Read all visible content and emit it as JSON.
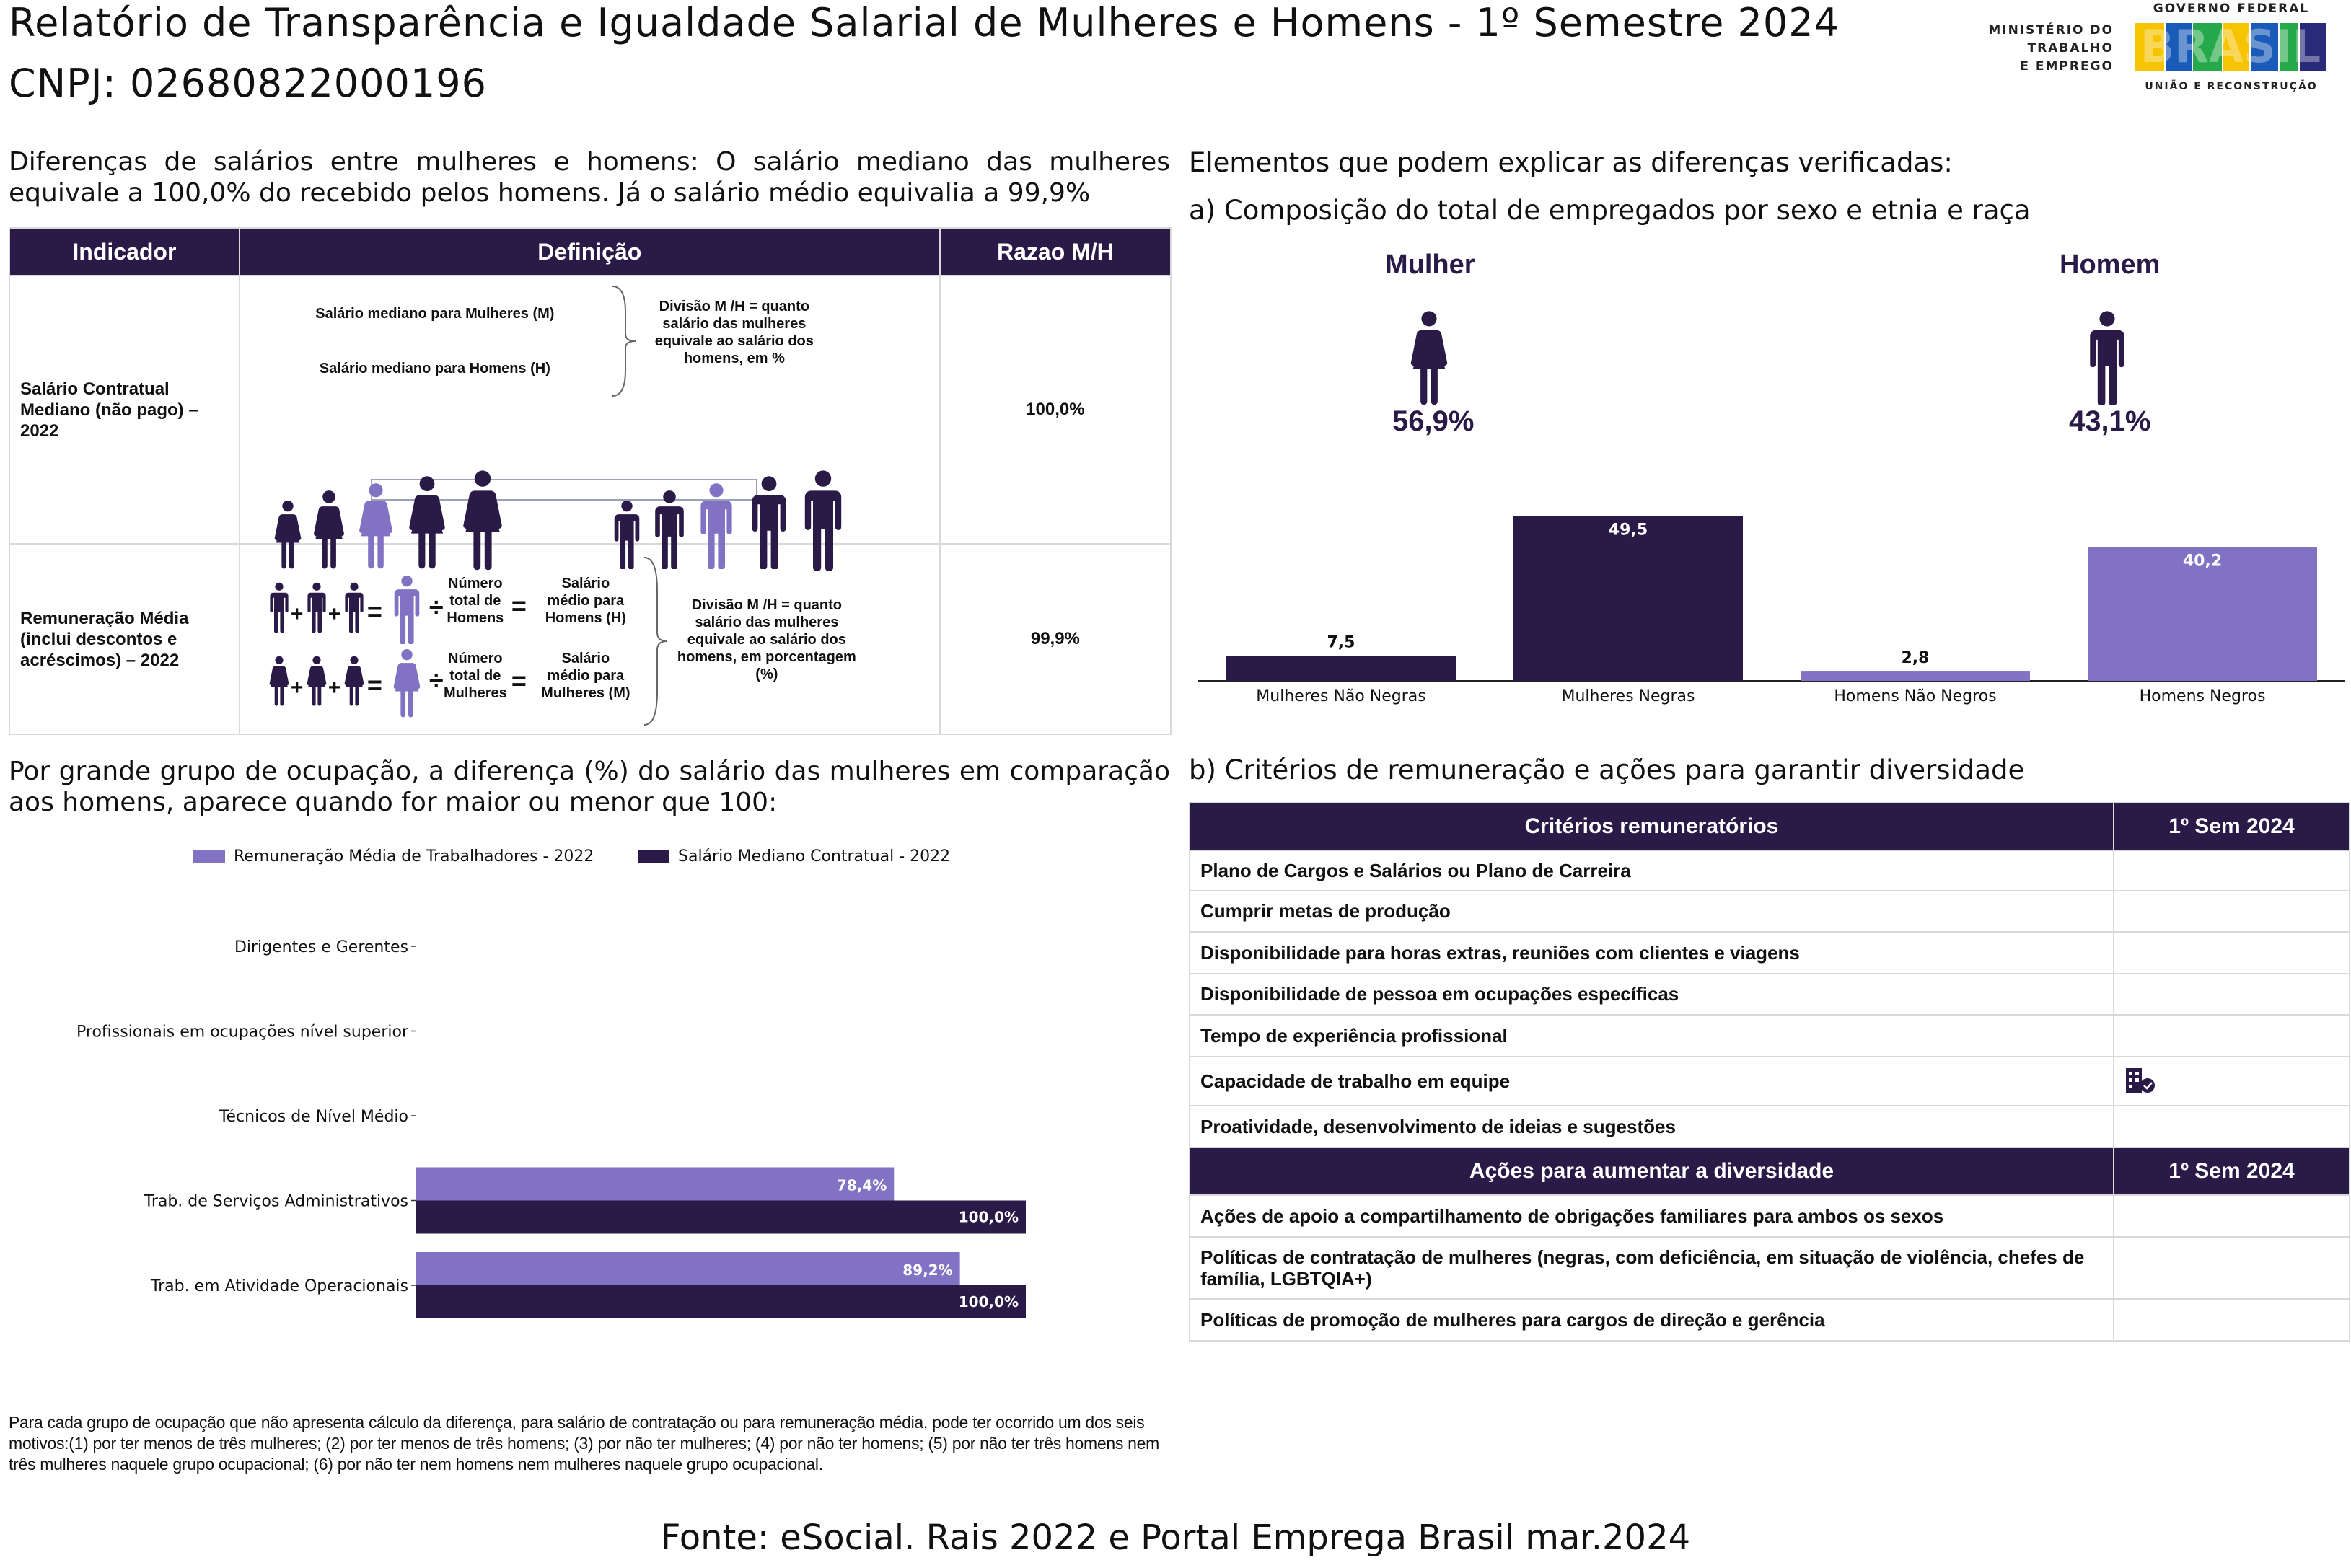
{
  "header": {
    "title": "Relatório de Transparência e Igualdade Salarial de Mulheres e Homens - 1º Semestre 2024",
    "cnpj": "CNPJ: 02680822000196"
  },
  "logos": {
    "ministerio": [
      "MINISTÉRIO DO",
      "TRABALHO",
      "E EMPREGO"
    ],
    "governo_top": "GOVERNO FEDERAL",
    "brasil": "BRASIL",
    "governo_bottom": "UNIÃO E RECONSTRUÇÃO"
  },
  "salary_diff": {
    "text": "Diferenças de salários entre mulheres e homens: O salário mediano das mulheres equivale a 100,0% do recebido pelos homens. Já o salário médio equivalia a 99,9%",
    "headers": [
      "Indicador",
      "Definição",
      "Razao M/H"
    ],
    "row1": {
      "indicator": "Salário Contratual Mediano (não pago) – 2022",
      "def_women": "Salário mediano para Mulheres (M)",
      "def_men": "Salário mediano para Homens (H)",
      "def_div": "Divisão M /H = quanto salário das mulheres equivale ao salário dos homens, em %",
      "ratio": "100,0%"
    },
    "row2": {
      "indicator": "Remuneração Média (inclui descontos e acréscimos) – 2022",
      "num_men": "Número total de Homens",
      "sal_men": "Salário médio para Homens (H)",
      "num_women": "Número total de Mulheres",
      "sal_women": "Salário médio para Mulheres (M)",
      "def_div": "Divisão M /H = quanto salário das mulheres equivale ao salário dos homens, em porcentagem (%)",
      "ratio": "99,9%"
    }
  },
  "elements": {
    "title": "Elementos que podem explicar as diferenças verificadas:",
    "subtitle_a": "a) Composição do total de empregados por sexo e etnia e raça",
    "women_label": "Mulher",
    "women_pct": "56,9%",
    "men_label": "Homem",
    "men_pct": "43,1%"
  },
  "occupation": {
    "text": "Por grande grupo de ocupação, a diferença (%) do salário das mulheres em comparação aos homens, aparece quando for maior ou menor que 100:",
    "note": "Para cada grupo de ocupação que não apresenta cálculo da diferença, para salário de contratação ou para remuneração média, pode ter ocorrido um dos seis motivos:(1) por ter menos de três mulheres; (2) por ter menos de três homens; (3) por não ter mulheres; (4) por não ter homens; (5) por não ter três homens nem três mulheres naquele grupo ocupacional; (6) por não ter nem homens nem mulheres naquele grupo ocupacional."
  },
  "criteria": {
    "subtitle_b": "b) Critérios de remuneração e ações para garantir diversidade",
    "header1": "Critérios remuneratórios",
    "header_sem": "1º Sem 2024",
    "items": [
      "Plano de Cargos e Salários ou Plano de Carreira",
      "Cumprir metas de produção",
      "Disponibilidade para horas extras, reuniões com clientes e viagens",
      "Disponibilidade de pessoa em ocupações específicas",
      "Tempo de experiência profissional",
      "Capacidade de trabalho em equipe",
      "Proatividade, desenvolvimento de ideias e sugestões"
    ],
    "header2": "Ações para aumentar a diversidade",
    "actions": [
      "Ações de apoio a compartilhamento de obrigações familiares para ambos os sexos",
      "Políticas de contratação de mulheres (negras, com deficiência, em situação de violência, chefes de família, LGBTQIA+)",
      "Políticas de promoção de mulheres para cargos de direção e gerência"
    ]
  },
  "footer": {
    "source": "Fonte: eSocial. Rais 2022 e Portal Emprega Brasil mar.2024"
  },
  "colors": {
    "dark": "#2a1a48",
    "light": "#8272c4",
    "medium_light": "#8878c8"
  },
  "chart_data": [
    {
      "type": "bar",
      "categories": [
        "Mulheres Não Negras",
        "Mulheres Negras",
        "Homens Não Negros",
        "Homens Negros"
      ],
      "values": [
        7.5,
        49.5,
        2.8,
        40.2
      ],
      "labels": [
        "7,5",
        "49,5",
        "2,8",
        "40,2"
      ],
      "colors": [
        "#2a1a48",
        "#2a1a48",
        "#8272c4",
        "#8272c4"
      ],
      "title": "",
      "xlabel": "",
      "ylabel": "",
      "ylim": [
        0,
        55
      ]
    },
    {
      "type": "bar",
      "orientation": "horizontal",
      "categories": [
        "Dirigentes e Gerentes",
        "Profissionais em ocupações nível superior",
        "Técnicos de Nível Médio",
        "Trab. de Serviços Administrativos",
        "Trab. em Atividade Operacionais"
      ],
      "series": [
        {
          "name": "Remuneração Média de Trabalhadores - 2022",
          "values": [
            null,
            null,
            null,
            78.4,
            89.2
          ],
          "labels": [
            "",
            "",
            "",
            "78,4%",
            "89,2%"
          ]
        },
        {
          "name": "Salário Mediano Contratual - 2022",
          "values": [
            null,
            null,
            null,
            100.0,
            100.0
          ],
          "labels": [
            "",
            "",
            "",
            "100,0%",
            "100,0%"
          ]
        }
      ],
      "legend": "top",
      "xlim": [
        0,
        100
      ]
    }
  ]
}
